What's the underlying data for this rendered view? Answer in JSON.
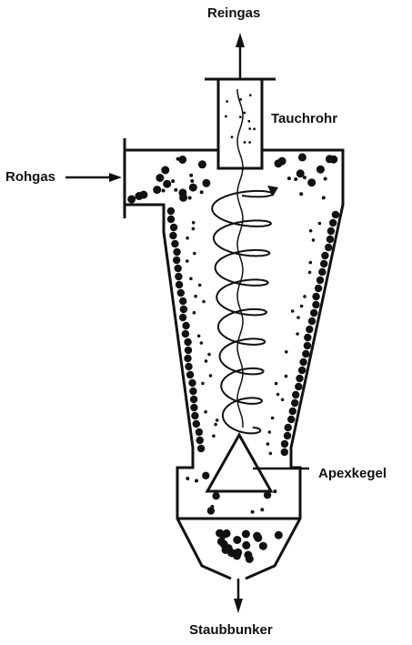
{
  "labels": {
    "top": "Reingas",
    "tube": "Tauchrohr",
    "inlet": "Rohgas",
    "cone": "Apexkegel",
    "bottom": "Staubbunker"
  },
  "colors": {
    "stroke": "#111111",
    "background": "#ffffff"
  }
}
